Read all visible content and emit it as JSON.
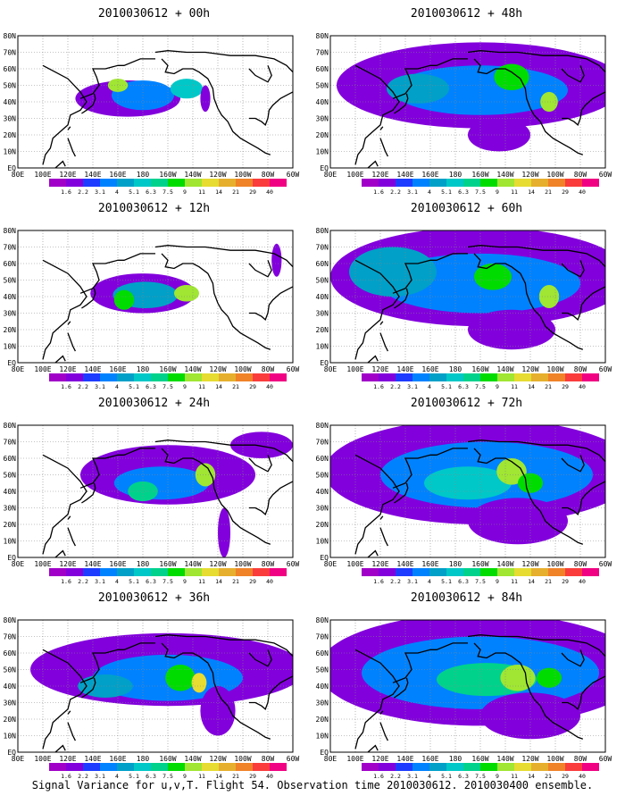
{
  "caption": "Signal Variance for u,v,T. Flight 54. Observation time 2010030612. 2010030400 ensemble.",
  "chart_data": [
    {
      "type": "heatmap",
      "title": "2010030612 + 00h",
      "lead": "00h",
      "xticks": [
        "80E",
        "100E",
        "120E",
        "140E",
        "160E",
        "180",
        "160W",
        "140W",
        "120W",
        "100W",
        "80W",
        "60W"
      ],
      "yticks": [
        "EQ",
        "10N",
        "20N",
        "30N",
        "40N",
        "50N",
        "60N",
        "70N",
        "80N"
      ],
      "legend_levels": [
        "1.6",
        "2.2",
        "3.1",
        "4",
        "5.1",
        "6.3",
        "7.5",
        "9",
        "11",
        "14",
        "21",
        "29",
        "40"
      ],
      "legend_colors": [
        "#a000c8",
        "#8200dc",
        "#1e3cff",
        "#0082ff",
        "#00a0c8",
        "#00c8c8",
        "#00d28c",
        "#00dc00",
        "#a0e632",
        "#e6dc32",
        "#e6af2d",
        "#f08228",
        "#fa3c3c",
        "#f00082"
      ],
      "blobs": [
        {
          "lon": 168,
          "lat": 42,
          "rx": 42,
          "ry": 11,
          "level": 1
        },
        {
          "lon": 180,
          "lat": 44,
          "rx": 25,
          "ry": 9,
          "level": 3
        },
        {
          "lon": 160,
          "lat": 50,
          "rx": 8,
          "ry": 4,
          "level": 8
        },
        {
          "lon": 215,
          "lat": 48,
          "rx": 13,
          "ry": 6,
          "level": 5
        },
        {
          "lon": 230,
          "lat": 42,
          "rx": 4,
          "ry": 8,
          "level": 1
        }
      ]
    },
    {
      "type": "heatmap",
      "title": "2010030612 + 12h",
      "lead": "12h",
      "xticks": [
        "80E",
        "100E",
        "120E",
        "140E",
        "160E",
        "180",
        "160W",
        "140W",
        "120W",
        "100W",
        "80W",
        "60W"
      ],
      "yticks": [
        "EQ",
        "10N",
        "20N",
        "30N",
        "40N",
        "50N",
        "60N",
        "70N",
        "80N"
      ],
      "legend_levels": [
        "1.6",
        "2.2",
        "3.1",
        "4",
        "5.1",
        "6.3",
        "7.5",
        "9",
        "11",
        "14",
        "21",
        "29",
        "40"
      ],
      "legend_colors": [
        "#a000c8",
        "#8200dc",
        "#1e3cff",
        "#0082ff",
        "#00a0c8",
        "#00c8c8",
        "#00d28c",
        "#00dc00",
        "#a0e632",
        "#e6dc32",
        "#e6af2d",
        "#f08228",
        "#fa3c3c",
        "#f00082"
      ],
      "blobs": [
        {
          "lon": 180,
          "lat": 42,
          "rx": 42,
          "ry": 12,
          "level": 1
        },
        {
          "lon": 182,
          "lat": 41,
          "rx": 26,
          "ry": 8,
          "level": 4
        },
        {
          "lon": 165,
          "lat": 38,
          "rx": 8,
          "ry": 6,
          "level": 7
        },
        {
          "lon": 215,
          "lat": 42,
          "rx": 10,
          "ry": 5,
          "level": 8
        },
        {
          "lon": 287,
          "lat": 62,
          "rx": 4,
          "ry": 10,
          "level": 1
        }
      ]
    },
    {
      "type": "heatmap",
      "title": "2010030612 + 24h",
      "lead": "24h",
      "xticks": [
        "80E",
        "100E",
        "120E",
        "140E",
        "160E",
        "180",
        "160W",
        "140W",
        "120W",
        "100W",
        "80W",
        "60W"
      ],
      "yticks": [
        "EQ",
        "10N",
        "20N",
        "30N",
        "40N",
        "50N",
        "60N",
        "70N",
        "80N"
      ],
      "legend_levels": [
        "1.6",
        "2.2",
        "3.1",
        "4",
        "5.1",
        "6.3",
        "7.5",
        "9",
        "11",
        "14",
        "21",
        "29",
        "40"
      ],
      "legend_colors": [
        "#a000c8",
        "#8200dc",
        "#1e3cff",
        "#0082ff",
        "#00a0c8",
        "#00c8c8",
        "#00d28c",
        "#00dc00",
        "#a0e632",
        "#e6dc32",
        "#e6af2d",
        "#f08228",
        "#fa3c3c",
        "#f00082"
      ],
      "blobs": [
        {
          "lon": 200,
          "lat": 50,
          "rx": 70,
          "ry": 18,
          "level": 1
        },
        {
          "lon": 195,
          "lat": 45,
          "rx": 38,
          "ry": 10,
          "level": 3
        },
        {
          "lon": 180,
          "lat": 40,
          "rx": 12,
          "ry": 6,
          "level": 6
        },
        {
          "lon": 230,
          "lat": 50,
          "rx": 8,
          "ry": 7,
          "level": 8
        },
        {
          "lon": 275,
          "lat": 68,
          "rx": 25,
          "ry": 8,
          "level": 1
        },
        {
          "lon": 245,
          "lat": 15,
          "rx": 5,
          "ry": 15,
          "level": 1
        }
      ]
    },
    {
      "type": "heatmap",
      "title": "2010030612 + 36h",
      "lead": "36h",
      "xticks": [
        "80E",
        "100E",
        "120E",
        "140E",
        "160E",
        "180",
        "160W",
        "140W",
        "120W",
        "100W",
        "80W",
        "60W"
      ],
      "yticks": [
        "EQ",
        "10N",
        "20N",
        "30N",
        "40N",
        "50N",
        "60N",
        "70N",
        "80N"
      ],
      "legend_levels": [
        "1.6",
        "2.2",
        "3.1",
        "4",
        "5.1",
        "6.3",
        "7.5",
        "9",
        "11",
        "14",
        "21",
        "29",
        "40"
      ],
      "legend_colors": [
        "#a000c8",
        "#8200dc",
        "#1e3cff",
        "#0082ff",
        "#00a0c8",
        "#00c8c8",
        "#00d28c",
        "#00dc00",
        "#a0e632",
        "#e6dc32",
        "#e6af2d",
        "#f08228",
        "#fa3c3c",
        "#f00082"
      ],
      "blobs": [
        {
          "lon": 200,
          "lat": 50,
          "rx": 110,
          "ry": 22,
          "level": 1
        },
        {
          "lon": 200,
          "lat": 45,
          "rx": 60,
          "ry": 14,
          "level": 3
        },
        {
          "lon": 150,
          "lat": 40,
          "rx": 22,
          "ry": 7,
          "level": 4
        },
        {
          "lon": 210,
          "lat": 45,
          "rx": 12,
          "ry": 8,
          "level": 7
        },
        {
          "lon": 225,
          "lat": 42,
          "rx": 6,
          "ry": 6,
          "level": 9
        },
        {
          "lon": 240,
          "lat": 25,
          "rx": 14,
          "ry": 15,
          "level": 1
        }
      ]
    },
    {
      "type": "heatmap",
      "title": "2010030612 + 48h",
      "lead": "48h",
      "xticks": [
        "80E",
        "100E",
        "120E",
        "140E",
        "160E",
        "180",
        "160W",
        "140W",
        "120W",
        "100W",
        "80W",
        "60W"
      ],
      "yticks": [
        "EQ",
        "10N",
        "20N",
        "30N",
        "40N",
        "50N",
        "60N",
        "70N",
        "80N"
      ],
      "legend_levels": [
        "1.6",
        "2.2",
        "3.1",
        "4",
        "5.1",
        "6.3",
        "7.5",
        "9",
        "11",
        "14",
        "21",
        "29",
        "40"
      ],
      "legend_colors": [
        "#a000c8",
        "#8200dc",
        "#1e3cff",
        "#0082ff",
        "#00a0c8",
        "#00c8c8",
        "#00d28c",
        "#00dc00",
        "#a0e632",
        "#e6dc32",
        "#e6af2d",
        "#f08228",
        "#fa3c3c",
        "#f00082"
      ],
      "blobs": [
        {
          "lon": 200,
          "lat": 50,
          "rx": 115,
          "ry": 26,
          "level": 1
        },
        {
          "lon": 200,
          "lat": 47,
          "rx": 70,
          "ry": 15,
          "level": 3
        },
        {
          "lon": 150,
          "lat": 48,
          "rx": 25,
          "ry": 9,
          "level": 4
        },
        {
          "lon": 225,
          "lat": 55,
          "rx": 14,
          "ry": 8,
          "level": 7
        },
        {
          "lon": 255,
          "lat": 40,
          "rx": 7,
          "ry": 6,
          "level": 8
        },
        {
          "lon": 215,
          "lat": 20,
          "rx": 25,
          "ry": 10,
          "level": 1
        }
      ]
    },
    {
      "type": "heatmap",
      "title": "2010030612 + 60h",
      "lead": "60h",
      "xticks": [
        "80E",
        "100E",
        "120E",
        "140E",
        "160E",
        "180",
        "160W",
        "140W",
        "120W",
        "100W",
        "80W",
        "60W"
      ],
      "yticks": [
        "EQ",
        "10N",
        "20N",
        "30N",
        "40N",
        "50N",
        "60N",
        "70N",
        "80N"
      ],
      "legend_levels": [
        "1.6",
        "2.2",
        "3.1",
        "4",
        "5.1",
        "6.3",
        "7.5",
        "9",
        "11",
        "14",
        "21",
        "29",
        "40"
      ],
      "legend_colors": [
        "#a000c8",
        "#8200dc",
        "#1e3cff",
        "#0082ff",
        "#00a0c8",
        "#00c8c8",
        "#00d28c",
        "#00dc00",
        "#a0e632",
        "#e6dc32",
        "#e6af2d",
        "#f08228",
        "#fa3c3c",
        "#f00082"
      ],
      "blobs": [
        {
          "lon": 200,
          "lat": 52,
          "rx": 120,
          "ry": 30,
          "level": 1
        },
        {
          "lon": 200,
          "lat": 48,
          "rx": 80,
          "ry": 18,
          "level": 3
        },
        {
          "lon": 130,
          "lat": 55,
          "rx": 35,
          "ry": 15,
          "level": 4
        },
        {
          "lon": 210,
          "lat": 52,
          "rx": 15,
          "ry": 8,
          "level": 7
        },
        {
          "lon": 255,
          "lat": 40,
          "rx": 8,
          "ry": 7,
          "level": 8
        },
        {
          "lon": 225,
          "lat": 20,
          "rx": 35,
          "ry": 12,
          "level": 1
        }
      ]
    },
    {
      "type": "heatmap",
      "title": "2010030612 + 72h",
      "lead": "72h",
      "xticks": [
        "80E",
        "100E",
        "120E",
        "140E",
        "160E",
        "180",
        "160W",
        "140W",
        "120W",
        "100W",
        "80W",
        "60W"
      ],
      "yticks": [
        "EQ",
        "10N",
        "20N",
        "30N",
        "40N",
        "50N",
        "60N",
        "70N",
        "80N"
      ],
      "legend_levels": [
        "1.6",
        "2.2",
        "3.1",
        "4",
        "5.1",
        "6.3",
        "7.5",
        "9",
        "11",
        "14",
        "21",
        "29",
        "40"
      ],
      "legend_colors": [
        "#a000c8",
        "#8200dc",
        "#1e3cff",
        "#0082ff",
        "#00a0c8",
        "#00c8c8",
        "#00d28c",
        "#00dc00",
        "#a0e632",
        "#e6dc32",
        "#e6af2d",
        "#f08228",
        "#fa3c3c",
        "#f00082"
      ],
      "blobs": [
        {
          "lon": 200,
          "lat": 52,
          "rx": 125,
          "ry": 32,
          "level": 1
        },
        {
          "lon": 205,
          "lat": 50,
          "rx": 85,
          "ry": 20,
          "level": 3
        },
        {
          "lon": 190,
          "lat": 45,
          "rx": 35,
          "ry": 10,
          "level": 5
        },
        {
          "lon": 225,
          "lat": 52,
          "rx": 12,
          "ry": 8,
          "level": 8
        },
        {
          "lon": 240,
          "lat": 45,
          "rx": 10,
          "ry": 6,
          "level": 7
        },
        {
          "lon": 230,
          "lat": 22,
          "rx": 40,
          "ry": 14,
          "level": 1
        }
      ]
    },
    {
      "type": "heatmap",
      "title": "2010030612 + 84h",
      "lead": "84h",
      "xticks": [
        "80E",
        "100E",
        "120E",
        "140E",
        "160E",
        "180",
        "160W",
        "140W",
        "120W",
        "100W",
        "80W",
        "60W"
      ],
      "yticks": [
        "EQ",
        "10N",
        "20N",
        "30N",
        "40N",
        "50N",
        "60N",
        "70N",
        "80N"
      ],
      "legend_levels": [
        "1.6",
        "2.2",
        "3.1",
        "4",
        "5.1",
        "6.3",
        "7.5",
        "9",
        "11",
        "14",
        "21",
        "29",
        "40"
      ],
      "legend_colors": [
        "#a000c8",
        "#8200dc",
        "#1e3cff",
        "#0082ff",
        "#00a0c8",
        "#00c8c8",
        "#00d28c",
        "#00dc00",
        "#a0e632",
        "#e6dc32",
        "#e6af2d",
        "#f08228",
        "#fa3c3c",
        "#f00082"
      ],
      "blobs": [
        {
          "lon": 200,
          "lat": 50,
          "rx": 130,
          "ry": 34,
          "level": 1
        },
        {
          "lon": 200,
          "lat": 48,
          "rx": 95,
          "ry": 22,
          "level": 3
        },
        {
          "lon": 205,
          "lat": 44,
          "rx": 40,
          "ry": 10,
          "level": 6
        },
        {
          "lon": 230,
          "lat": 45,
          "rx": 14,
          "ry": 8,
          "level": 8
        },
        {
          "lon": 255,
          "lat": 45,
          "rx": 10,
          "ry": 6,
          "level": 7
        },
        {
          "lon": 240,
          "lat": 22,
          "rx": 40,
          "ry": 14,
          "level": 1
        }
      ]
    }
  ]
}
